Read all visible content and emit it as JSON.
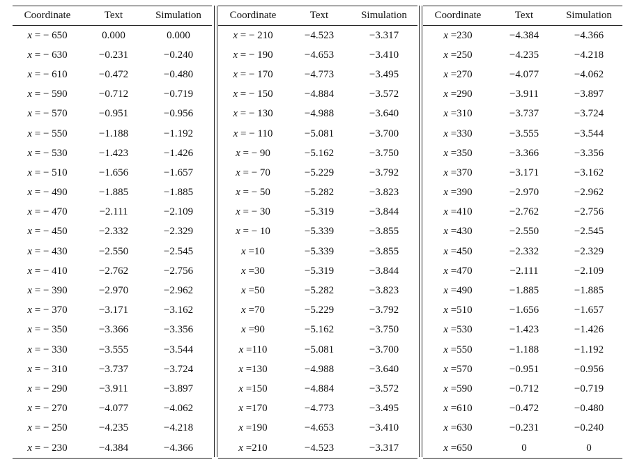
{
  "headers": [
    "Coordinate",
    "Text",
    "Simulation"
  ],
  "panels": [
    {
      "rows": [
        {
          "var": "x",
          "coord": "= − 650",
          "text": "0.000",
          "sim": "0.000"
        },
        {
          "var": "x",
          "coord": "= − 630",
          "text": "−0.231",
          "sim": "−0.240"
        },
        {
          "var": "x",
          "coord": "= − 610",
          "text": "−0.472",
          "sim": "−0.480"
        },
        {
          "var": "x",
          "coord": "= − 590",
          "text": "−0.712",
          "sim": "−0.719"
        },
        {
          "var": "x",
          "coord": "= − 570",
          "text": "−0.951",
          "sim": "−0.956"
        },
        {
          "var": "x",
          "coord": "= − 550",
          "text": "−1.188",
          "sim": "−1.192"
        },
        {
          "var": "x",
          "coord": "= − 530",
          "text": "−1.423",
          "sim": "−1.426"
        },
        {
          "var": "x",
          "coord": "= − 510",
          "text": "−1.656",
          "sim": "−1.657"
        },
        {
          "var": "x",
          "coord": "= − 490",
          "text": "−1.885",
          "sim": "−1.885"
        },
        {
          "var": "x",
          "coord": "= − 470",
          "text": "−2.111",
          "sim": "−2.109"
        },
        {
          "var": "x",
          "coord": "= − 450",
          "text": "−2.332",
          "sim": "−2.329"
        },
        {
          "var": "x",
          "coord": "= − 430",
          "text": "−2.550",
          "sim": "−2.545"
        },
        {
          "var": "x",
          "coord": "= − 410",
          "text": "−2.762",
          "sim": "−2.756"
        },
        {
          "var": "x",
          "coord": "= − 390",
          "text": "−2.970",
          "sim": "−2.962"
        },
        {
          "var": "x",
          "coord": "= − 370",
          "text": "−3.171",
          "sim": "−3.162"
        },
        {
          "var": "x",
          "coord": "= − 350",
          "text": "−3.366",
          "sim": "−3.356"
        },
        {
          "var": "x",
          "coord": "= − 330",
          "text": "−3.555",
          "sim": "−3.544"
        },
        {
          "var": "x",
          "coord": "= − 310",
          "text": "−3.737",
          "sim": "−3.724"
        },
        {
          "var": "x",
          "coord": "= − 290",
          "text": "−3.911",
          "sim": "−3.897"
        },
        {
          "var": "x",
          "coord": "= − 270",
          "text": "−4.077",
          "sim": "−4.062"
        },
        {
          "var": "x",
          "coord": "= − 250",
          "text": "−4.235",
          "sim": "−4.218"
        },
        {
          "var": "x",
          "coord": "= − 230",
          "text": "−4.384",
          "sim": "−4.366"
        }
      ]
    },
    {
      "rows": [
        {
          "var": "x",
          "coord": "= − 210",
          "text": "−4.523",
          "sim": "−3.317"
        },
        {
          "var": "x",
          "coord": "= − 190",
          "text": "−4.653",
          "sim": "−3.410"
        },
        {
          "var": "x",
          "coord": "= − 170",
          "text": "−4.773",
          "sim": "−3.495"
        },
        {
          "var": "x",
          "coord": "= − 150",
          "text": "−4.884",
          "sim": "−3.572"
        },
        {
          "var": "x",
          "coord": "= − 130",
          "text": "−4.988",
          "sim": "−3.640"
        },
        {
          "var": "x",
          "coord": "= − 110",
          "text": "−5.081",
          "sim": "−3.700"
        },
        {
          "var": "x",
          "coord": "= − 90",
          "text": "−5.162",
          "sim": "−3.750"
        },
        {
          "var": "x",
          "coord": "= − 70",
          "text": "−5.229",
          "sim": "−3.792"
        },
        {
          "var": "x",
          "coord": "= − 50",
          "text": "−5.282",
          "sim": "−3.823"
        },
        {
          "var": "x",
          "coord": "= − 30",
          "text": "−5.319",
          "sim": "−3.844"
        },
        {
          "var": "x",
          "coord": "= − 10",
          "text": "−5.339",
          "sim": "−3.855"
        },
        {
          "var": "x",
          "coord": "=10",
          "text": "−5.339",
          "sim": "−3.855"
        },
        {
          "var": "x",
          "coord": "=30",
          "text": "−5.319",
          "sim": "−3.844"
        },
        {
          "var": "x",
          "coord": "=50",
          "text": "−5.282",
          "sim": "−3.823"
        },
        {
          "var": "x",
          "coord": "=70",
          "text": "−5.229",
          "sim": "−3.792"
        },
        {
          "var": "x",
          "coord": "=90",
          "text": "−5.162",
          "sim": "−3.750"
        },
        {
          "var": "x",
          "coord": "=110",
          "text": "−5.081",
          "sim": "−3.700"
        },
        {
          "var": "x",
          "coord": "=130",
          "text": "−4.988",
          "sim": "−3.640"
        },
        {
          "var": "x",
          "coord": "=150",
          "text": "−4.884",
          "sim": "−3.572"
        },
        {
          "var": "x",
          "coord": "=170",
          "text": "−4.773",
          "sim": "−3.495"
        },
        {
          "var": "x",
          "coord": "=190",
          "text": "−4.653",
          "sim": "−3.410"
        },
        {
          "var": "x",
          "coord": "=210",
          "text": "−4.523",
          "sim": "−3.317"
        }
      ]
    },
    {
      "rows": [
        {
          "var": "x",
          "coord": "=230",
          "text": "−4.384",
          "sim": "−4.366"
        },
        {
          "var": "x",
          "coord": "=250",
          "text": "−4.235",
          "sim": "−4.218"
        },
        {
          "var": "x",
          "coord": "=270",
          "text": "−4.077",
          "sim": "−4.062"
        },
        {
          "var": "x",
          "coord": "=290",
          "text": "−3.911",
          "sim": "−3.897"
        },
        {
          "var": "x",
          "coord": "=310",
          "text": "−3.737",
          "sim": "−3.724"
        },
        {
          "var": "x",
          "coord": "=330",
          "text": "−3.555",
          "sim": "−3.544"
        },
        {
          "var": "x",
          "coord": "=350",
          "text": "−3.366",
          "sim": "−3.356"
        },
        {
          "var": "x",
          "coord": "=370",
          "text": "−3.171",
          "sim": "−3.162"
        },
        {
          "var": "x",
          "coord": "=390",
          "text": "−2.970",
          "sim": "−2.962"
        },
        {
          "var": "x",
          "coord": "=410",
          "text": "−2.762",
          "sim": "−2.756"
        },
        {
          "var": "x",
          "coord": "=430",
          "text": "−2.550",
          "sim": "−2.545"
        },
        {
          "var": "x",
          "coord": "=450",
          "text": "−2.332",
          "sim": "−2.329"
        },
        {
          "var": "x",
          "coord": "=470",
          "text": "−2.111",
          "sim": "−2.109"
        },
        {
          "var": "x",
          "coord": "=490",
          "text": "−1.885",
          "sim": "−1.885"
        },
        {
          "var": "x",
          "coord": "=510",
          "text": "−1.656",
          "sim": "−1.657"
        },
        {
          "var": "x",
          "coord": "=530",
          "text": "−1.423",
          "sim": "−1.426"
        },
        {
          "var": "x",
          "coord": "=550",
          "text": "−1.188",
          "sim": "−1.192"
        },
        {
          "var": "x",
          "coord": "=570",
          "text": "−0.951",
          "sim": "−0.956"
        },
        {
          "var": "x",
          "coord": "=590",
          "text": "−0.712",
          "sim": "−0.719"
        },
        {
          "var": "x",
          "coord": "=610",
          "text": "−0.472",
          "sim": "−0.480"
        },
        {
          "var": "x",
          "coord": "=630",
          "text": "−0.231",
          "sim": "−0.240"
        },
        {
          "var": "x",
          "coord": "=650",
          "text": "0",
          "sim": "0"
        }
      ]
    }
  ]
}
